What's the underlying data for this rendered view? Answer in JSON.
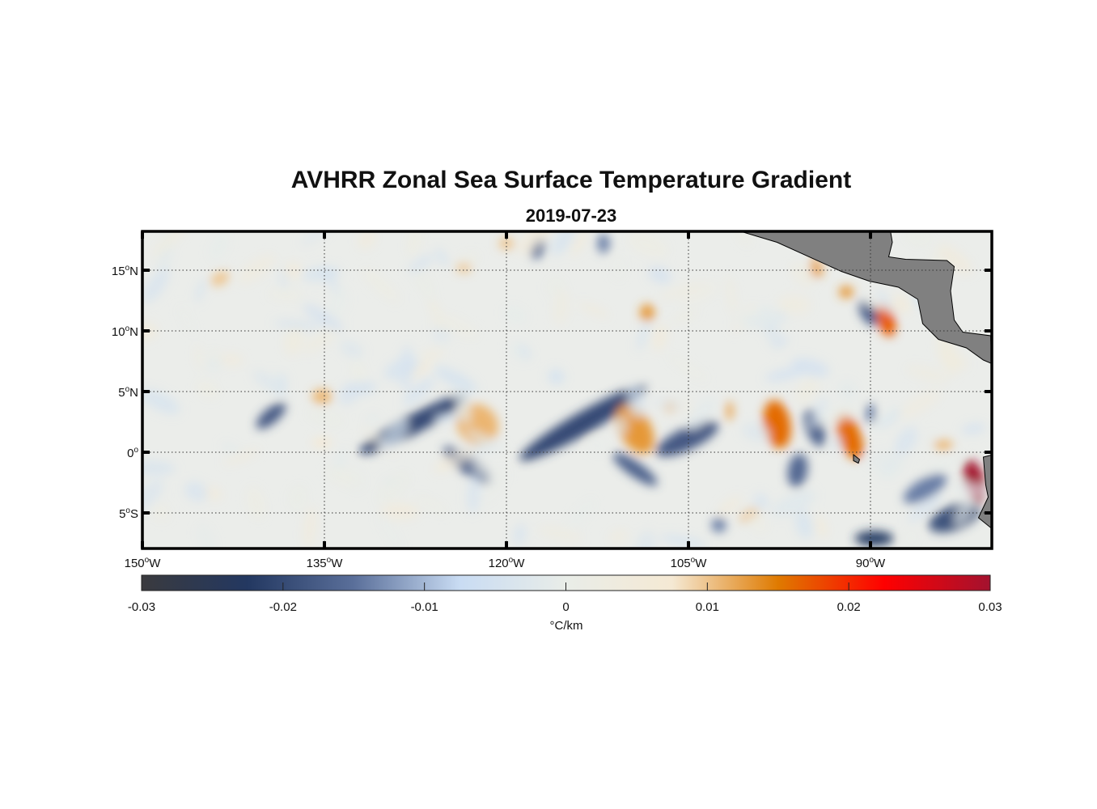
{
  "title": "AVHRR Zonal Sea Surface Temperature Gradient",
  "subtitle": "2019-07-23",
  "chart_data": {
    "type": "heatmap",
    "title": "AVHRR Zonal Sea Surface Temperature Gradient",
    "subtitle": "2019-07-23",
    "lon_range": [
      -150,
      -80
    ],
    "lat_range": [
      -8,
      18
    ],
    "lon_ticks": [
      -150,
      -135,
      -120,
      -105,
      -90
    ],
    "lon_tick_labels": [
      "150",
      "135",
      "120",
      "105",
      "90"
    ],
    "lon_suffix": "W",
    "lat_ticks": [
      15,
      10,
      5,
      0,
      -5
    ],
    "lat_tick_labels": [
      "15",
      "10",
      "5",
      "0",
      "5"
    ],
    "lat_suffixes": [
      "N",
      "N",
      "N",
      "",
      "S"
    ],
    "grid": "dotted",
    "colorbar": {
      "range": [
        -0.03,
        0.03
      ],
      "ticks": [
        "-0.03",
        "-0.02",
        "-0.01",
        "0",
        "0.01",
        "0.02",
        "0.03"
      ],
      "label": "°C/km",
      "colors": [
        "#3a3a3e",
        "#233861",
        "#5a6f9a",
        "#c9dcf3",
        "#e9ede8",
        "#f5e9d4",
        "#df7a00",
        "#ff0000",
        "#a3122f"
      ]
    },
    "features": [
      {
        "lon": -127.7,
        "lat": 2.3,
        "value": -0.02,
        "rx": 5,
        "ry": 0.8,
        "rot": -28
      },
      {
        "lon": -122.4,
        "lat": 2.3,
        "value": 0.011,
        "rx": 1.8,
        "ry": 1.6,
        "rot": 40
      },
      {
        "lon": -113.7,
        "lat": 2.4,
        "value": -0.02,
        "rx": 6,
        "ry": 0.9,
        "rot": -30
      },
      {
        "lon": -109.4,
        "lat": 1.9,
        "value": 0.013,
        "rx": 1.3,
        "ry": 2.2,
        "rot": -30
      },
      {
        "lon": -105.1,
        "lat": 1.1,
        "value": -0.018,
        "rx": 2.8,
        "ry": 0.9,
        "rot": -25
      },
      {
        "lon": -123.1,
        "lat": -1.1,
        "value": -0.017,
        "rx": 2.5,
        "ry": 0.7,
        "rot": 35
      },
      {
        "lon": -109.4,
        "lat": -1.4,
        "value": -0.017,
        "rx": 2.2,
        "ry": 0.6,
        "rot": 35
      },
      {
        "lon": -139.4,
        "lat": 3.0,
        "value": -0.018,
        "rx": 1.5,
        "ry": 0.6,
        "rot": -40
      },
      {
        "lon": -135.2,
        "lat": 4.6,
        "value": 0.011,
        "rx": 0.8,
        "ry": 0.6,
        "rot": 0
      },
      {
        "lon": -135.2,
        "lat": 0.8,
        "value": 0.007,
        "rx": 0.8,
        "ry": 0.4,
        "rot": 0
      },
      {
        "lon": -97.7,
        "lat": 2.3,
        "value": 0.016,
        "rx": 1.1,
        "ry": 2.0,
        "rot": -10
      },
      {
        "lon": -91.7,
        "lat": 1.3,
        "value": 0.016,
        "rx": 0.9,
        "ry": 2.0,
        "rot": -20
      },
      {
        "lon": -94.6,
        "lat": 2.0,
        "value": -0.017,
        "rx": 0.7,
        "ry": 1.6,
        "rot": -20
      },
      {
        "lon": -96.0,
        "lat": -1.5,
        "value": -0.016,
        "rx": 0.8,
        "ry": 1.4,
        "rot": 10
      },
      {
        "lon": -88.7,
        "lat": 10.9,
        "value": 0.017,
        "rx": 0.7,
        "ry": 1.4,
        "rot": -15
      },
      {
        "lon": -90.2,
        "lat": 11.5,
        "value": -0.017,
        "rx": 0.6,
        "ry": 1.2,
        "rot": -30
      },
      {
        "lon": -81.4,
        "lat": -2.4,
        "value": 0.03,
        "rx": 0.8,
        "ry": 1.8,
        "rot": -15
      },
      {
        "lon": -89.7,
        "lat": -7.1,
        "value": -0.022,
        "rx": 1.6,
        "ry": 0.6,
        "rot": 0
      },
      {
        "lon": -83.1,
        "lat": -5.4,
        "value": -0.019,
        "rx": 2.2,
        "ry": 1.0,
        "rot": -20
      },
      {
        "lon": -85.5,
        "lat": -3.0,
        "value": -0.014,
        "rx": 2.0,
        "ry": 0.8,
        "rot": -30
      },
      {
        "lon": -108.4,
        "lat": 11.5,
        "value": 0.013,
        "rx": 0.6,
        "ry": 0.7,
        "rot": 0
      },
      {
        "lon": -94.4,
        "lat": 15.3,
        "value": 0.013,
        "rx": 0.5,
        "ry": 0.9,
        "rot": 0
      },
      {
        "lon": -92.0,
        "lat": 13.2,
        "value": 0.013,
        "rx": 0.6,
        "ry": 0.5,
        "rot": 0
      },
      {
        "lon": -120.0,
        "lat": 17.2,
        "value": 0.01,
        "rx": 0.6,
        "ry": 0.5,
        "rot": 0
      },
      {
        "lon": -117.4,
        "lat": 16.8,
        "value": -0.016,
        "rx": 0.5,
        "ry": 0.9,
        "rot": 20
      },
      {
        "lon": -143.6,
        "lat": 14.3,
        "value": 0.01,
        "rx": 0.8,
        "ry": 0.5,
        "rot": -30
      },
      {
        "lon": -123.5,
        "lat": 15.2,
        "value": 0.01,
        "rx": 0.6,
        "ry": 0.4,
        "rot": 0
      },
      {
        "lon": -112.0,
        "lat": 17.2,
        "value": -0.014,
        "rx": 0.5,
        "ry": 0.8,
        "rot": 0
      },
      {
        "lon": -101.6,
        "lat": 3.4,
        "value": 0.012,
        "rx": 0.3,
        "ry": 0.8,
        "rot": 0
      },
      {
        "lon": -100.0,
        "lat": -5.2,
        "value": 0.011,
        "rx": 0.8,
        "ry": 0.4,
        "rot": -30
      },
      {
        "lon": -102.5,
        "lat": -6.0,
        "value": -0.014,
        "rx": 0.6,
        "ry": 0.6,
        "rot": 0
      },
      {
        "lon": -84.0,
        "lat": 0.6,
        "value": 0.011,
        "rx": 0.8,
        "ry": 0.4,
        "rot": 0
      },
      {
        "lon": -90.0,
        "lat": 3.2,
        "value": -0.014,
        "rx": 0.4,
        "ry": 0.8,
        "rot": 0
      },
      {
        "lon": -106.5,
        "lat": 3.8,
        "value": 0.01,
        "rx": 0.6,
        "ry": 0.5,
        "rot": 0
      }
    ]
  }
}
